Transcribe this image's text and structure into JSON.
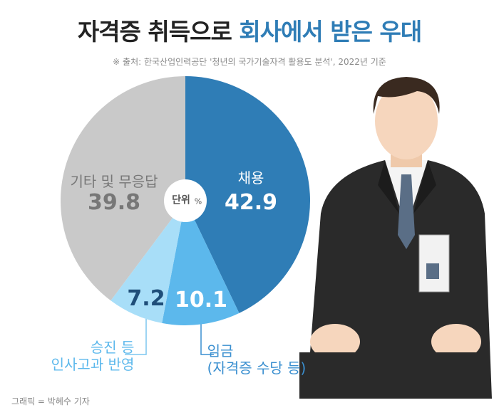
{
  "chart_data": {
    "type": "pie",
    "title": [
      "자격증 취득으로",
      "회사에서 받은 우대"
    ],
    "source": "※ 출처: 한국산업인력공단 '청년의 국가기술자격 활용도 분석', 2022년 기준",
    "credit": "그래픽 = 박혜수 기자",
    "unit_label": "단위",
    "unit": "%",
    "categories": [
      "채용",
      "임금\n(자격증 수당 등)",
      "승진 등\n인사고과 반영",
      "기타 및 무응답"
    ],
    "values": [
      42.9,
      10.1,
      7.2,
      39.8
    ],
    "colors": [
      "#2f7db6",
      "#5cb8ec",
      "#a8def8",
      "#c9c9c9"
    ]
  }
}
